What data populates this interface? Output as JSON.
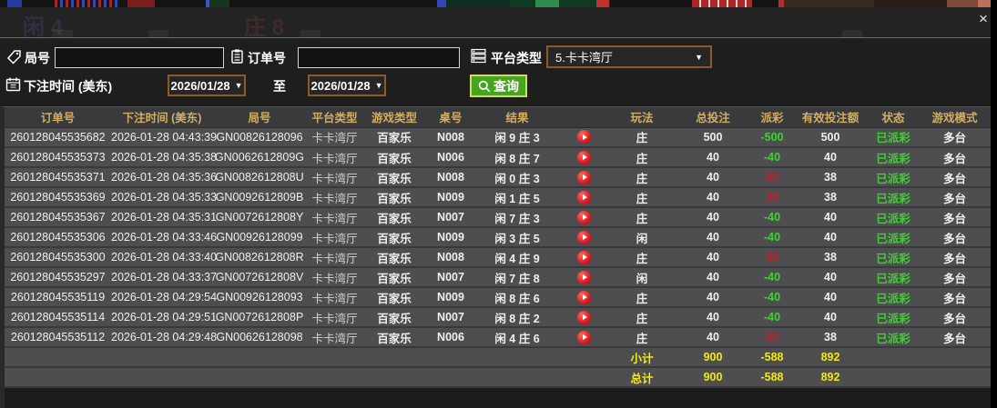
{
  "chrome": {
    "close_icon": "×"
  },
  "background": {
    "ghost_left": "闲 4",
    "ghost_right": "庄 8"
  },
  "filters": {
    "game_no": {
      "label": "局号",
      "value": ""
    },
    "order_no": {
      "label": "订单号",
      "value": ""
    },
    "platform": {
      "label": "平台类型",
      "selected": "5.卡卡湾厅",
      "caret": "▼"
    },
    "bet_time": {
      "label": "下注时间 (美东)",
      "from": "2026/01/28",
      "to_word": "至",
      "to": "2026/01/28",
      "caret": "▼"
    },
    "search": {
      "label": "查询"
    }
  },
  "colors": {
    "header_gold": "#d2ae62",
    "loss_green": "#3bd42e",
    "win_red": "#c02031",
    "summary_yellow": "#f0ea10",
    "button_green": "#47a41d",
    "picker_border": "#8a5a28"
  },
  "table": {
    "headers": [
      "订单号",
      "下注时间 (美东)",
      "局号",
      "平台类型",
      "游戏类型",
      "桌号",
      "结果",
      "",
      "玩法",
      "总投注",
      "派彩",
      "有效投注额",
      "状态",
      "游戏模式"
    ],
    "rows": [
      {
        "order": "260128045535682",
        "time": "2026-01-28 04:43:39",
        "game": "GN00826128096",
        "platform": "卡卡湾厅",
        "game_type": "百家乐",
        "table_no": "N008",
        "result": "闲 9 庄 3",
        "play": "庄",
        "total_bet": "500",
        "payout": "-500",
        "payout_tone": "green",
        "valid_bet": "500",
        "status": "已派彩",
        "mode": "多台"
      },
      {
        "order": "260128045535373",
        "time": "2026-01-28 04:35:38",
        "game": "GN0062612809G",
        "platform": "卡卡湾厅",
        "game_type": "百家乐",
        "table_no": "N006",
        "result": "闲 8 庄 7",
        "play": "庄",
        "total_bet": "40",
        "payout": "-40",
        "payout_tone": "green",
        "valid_bet": "40",
        "status": "已派彩",
        "mode": "多台"
      },
      {
        "order": "260128045535371",
        "time": "2026-01-28 04:35:36",
        "game": "GN0082612808U",
        "platform": "卡卡湾厅",
        "game_type": "百家乐",
        "table_no": "N008",
        "result": "闲 0 庄 3",
        "play": "庄",
        "total_bet": "40",
        "payout": "38",
        "payout_tone": "red",
        "valid_bet": "38",
        "status": "已派彩",
        "mode": "多台"
      },
      {
        "order": "260128045535369",
        "time": "2026-01-28 04:35:33",
        "game": "GN0092612809B",
        "platform": "卡卡湾厅",
        "game_type": "百家乐",
        "table_no": "N009",
        "result": "闲 1 庄 5",
        "play": "庄",
        "total_bet": "40",
        "payout": "38",
        "payout_tone": "red",
        "valid_bet": "38",
        "status": "已派彩",
        "mode": "多台"
      },
      {
        "order": "260128045535367",
        "time": "2026-01-28 04:35:31",
        "game": "GN0072612808Y",
        "platform": "卡卡湾厅",
        "game_type": "百家乐",
        "table_no": "N007",
        "result": "闲 7 庄 3",
        "play": "庄",
        "total_bet": "40",
        "payout": "-40",
        "payout_tone": "green",
        "valid_bet": "40",
        "status": "已派彩",
        "mode": "多台"
      },
      {
        "order": "260128045535306",
        "time": "2026-01-28 04:33:46",
        "game": "GN00926128099",
        "platform": "卡卡湾厅",
        "game_type": "百家乐",
        "table_no": "N009",
        "result": "闲 3 庄 5",
        "play": "闲",
        "total_bet": "40",
        "payout": "-40",
        "payout_tone": "green",
        "valid_bet": "40",
        "status": "已派彩",
        "mode": "多台"
      },
      {
        "order": "260128045535300",
        "time": "2026-01-28 04:33:40",
        "game": "GN0082612808R",
        "platform": "卡卡湾厅",
        "game_type": "百家乐",
        "table_no": "N008",
        "result": "闲 4 庄 9",
        "play": "庄",
        "total_bet": "40",
        "payout": "38",
        "payout_tone": "red",
        "valid_bet": "38",
        "status": "已派彩",
        "mode": "多台"
      },
      {
        "order": "260128045535297",
        "time": "2026-01-28 04:33:37",
        "game": "GN0072612808V",
        "platform": "卡卡湾厅",
        "game_type": "百家乐",
        "table_no": "N007",
        "result": "闲 7 庄 8",
        "play": "闲",
        "total_bet": "40",
        "payout": "-40",
        "payout_tone": "green",
        "valid_bet": "40",
        "status": "已派彩",
        "mode": "多台"
      },
      {
        "order": "260128045535119",
        "time": "2026-01-28 04:29:54",
        "game": "GN00926128093",
        "platform": "卡卡湾厅",
        "game_type": "百家乐",
        "table_no": "N009",
        "result": "闲 8 庄 6",
        "play": "庄",
        "total_bet": "40",
        "payout": "-40",
        "payout_tone": "green",
        "valid_bet": "40",
        "status": "已派彩",
        "mode": "多台"
      },
      {
        "order": "260128045535114",
        "time": "2026-01-28 04:29:51",
        "game": "GN0072612808P",
        "platform": "卡卡湾厅",
        "game_type": "百家乐",
        "table_no": "N007",
        "result": "闲 8 庄 2",
        "play": "庄",
        "total_bet": "40",
        "payout": "-40",
        "payout_tone": "green",
        "valid_bet": "40",
        "status": "已派彩",
        "mode": "多台"
      },
      {
        "order": "260128045535112",
        "time": "2026-01-28 04:29:48",
        "game": "GN00626128098",
        "platform": "卡卡湾厅",
        "game_type": "百家乐",
        "table_no": "N006",
        "result": "闲 4 庄 6",
        "play": "庄",
        "total_bet": "40",
        "payout": "38",
        "payout_tone": "red",
        "valid_bet": "38",
        "status": "已派彩",
        "mode": "多台"
      }
    ],
    "subtotal": {
      "label": "小计",
      "total_bet": "900",
      "payout": "-588",
      "valid_bet": "892"
    },
    "total": {
      "label": "总计",
      "total_bet": "900",
      "payout": "-588",
      "valid_bet": "892"
    }
  }
}
